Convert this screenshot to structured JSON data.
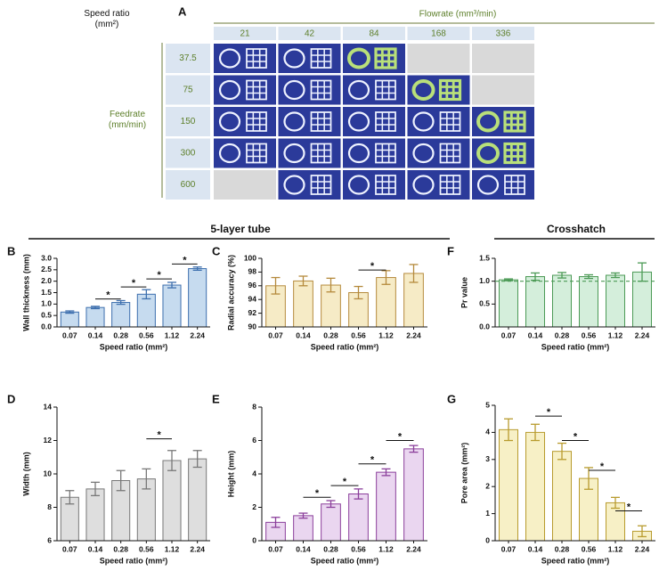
{
  "panel_a": {
    "label": "A",
    "row_title": "Speed ratio\n(mm²)",
    "column_title": "Flowrate (mm³/min)",
    "columns": [
      "21",
      "42",
      "84",
      "168",
      "336"
    ],
    "side_title": "Feedrate\n(mm/min)",
    "rows": [
      "37.5",
      "75",
      "150",
      "300",
      "600"
    ]
  },
  "sections": [
    {
      "title": "5-layer tube"
    },
    {
      "title": "Crosshatch"
    }
  ],
  "chart_data": [
    {
      "type": "bar",
      "label": "B",
      "ylabel": "Wall thickness (mm)",
      "xlabel": "Speed ratio (mm²)",
      "categories": [
        "0.07",
        "0.14",
        "0.28",
        "0.56",
        "1.12",
        "2.24"
      ],
      "values": [
        0.65,
        0.85,
        1.07,
        1.43,
        1.83,
        2.55
      ],
      "errors": [
        0.05,
        0.05,
        0.08,
        0.2,
        0.12,
        0.07
      ],
      "ylim": [
        0,
        3
      ],
      "yticks": [
        {
          "value": 0,
          "label": "0.0"
        },
        {
          "value": 0.5,
          "label": "0.5"
        },
        {
          "value": 1,
          "label": "1.0"
        },
        {
          "value": 1.5,
          "label": "1.5"
        },
        {
          "value": 2,
          "label": "2.0"
        },
        {
          "value": 2.5,
          "label": "2.5"
        },
        {
          "value": 3,
          "label": "3.0"
        }
      ],
      "color": "#c6dbef",
      "edgecolor": "#3d6fae",
      "brackets": [
        {
          "between": [
            1,
            2
          ],
          "y": 1.22,
          "label": "*"
        },
        {
          "between": [
            2,
            3
          ],
          "y": 1.75,
          "label": "*"
        },
        {
          "between": [
            3,
            4
          ],
          "y": 2.1,
          "label": "*"
        },
        {
          "between": [
            4,
            5
          ],
          "y": 2.75,
          "label": "*"
        }
      ]
    },
    {
      "type": "bar",
      "label": "C",
      "ylabel": "Radial accuracy (%)",
      "xlabel": "Speed ratio (mm²)",
      "categories": [
        "0.07",
        "0.14",
        "0.28",
        "0.56",
        "1.12",
        "2.24"
      ],
      "values": [
        96.0,
        96.7,
        96.1,
        95.0,
        97.2,
        97.8
      ],
      "errors": [
        1.2,
        0.7,
        1.0,
        0.9,
        1.0,
        1.3
      ],
      "ylim": [
        90,
        100
      ],
      "yticks": [
        90,
        92,
        94,
        96,
        98,
        100
      ],
      "color": "#f6ebc6",
      "edgecolor": "#b58a3c",
      "brackets": [
        {
          "between": [
            3,
            4
          ],
          "y": 98.3,
          "label": "*"
        }
      ]
    },
    {
      "type": "bar",
      "label": "F",
      "ylabel": "Pr value",
      "xlabel": "Speed ratio (mm²)",
      "categories": [
        "0.07",
        "0.14",
        "0.28",
        "0.56",
        "1.12",
        "2.24"
      ],
      "values": [
        1.03,
        1.1,
        1.13,
        1.1,
        1.13,
        1.2
      ],
      "errors": [
        0.02,
        0.08,
        0.06,
        0.04,
        0.05,
        0.2
      ],
      "ylim": [
        0,
        1.5
      ],
      "yticks": [
        {
          "value": 0,
          "label": "0.0"
        },
        {
          "value": 0.5,
          "label": "0.5"
        },
        {
          "value": 1,
          "label": "1.0"
        },
        {
          "value": 1.5,
          "label": "1.5"
        }
      ],
      "color": "#d4eedb",
      "edgecolor": "#4c9a56",
      "reference_line": 1
    },
    {
      "type": "bar",
      "label": "D",
      "ylabel": "Width (mm)",
      "xlabel": "Speed ratio (mm²)",
      "categories": [
        "0.07",
        "0.14",
        "0.28",
        "0.56",
        "1.12",
        "2.24"
      ],
      "values": [
        8.6,
        9.1,
        9.6,
        9.7,
        10.8,
        10.9
      ],
      "errors": [
        0.4,
        0.4,
        0.6,
        0.6,
        0.6,
        0.5
      ],
      "ylim": [
        6,
        14
      ],
      "yticks": [
        6,
        8,
        10,
        12,
        14
      ],
      "color": "#dedede",
      "edgecolor": "#787878",
      "brackets": [
        {
          "between": [
            3,
            4
          ],
          "y": 12.1,
          "label": "*"
        }
      ]
    },
    {
      "type": "bar",
      "label": "E",
      "ylabel": "Height (mm)",
      "xlabel": "Speed ratio (mm²)",
      "categories": [
        "0.07",
        "0.14",
        "0.28",
        "0.56",
        "1.12",
        "2.24"
      ],
      "values": [
        1.1,
        1.5,
        2.2,
        2.8,
        4.1,
        5.5
      ],
      "errors": [
        0.3,
        0.15,
        0.2,
        0.3,
        0.2,
        0.2
      ],
      "ylim": [
        0,
        8
      ],
      "yticks": [
        0,
        2,
        4,
        6,
        8
      ],
      "color": "#ead6f0",
      "edgecolor": "#8b3f9b",
      "brackets": [
        {
          "between": [
            1,
            2
          ],
          "y": 2.6,
          "label": "*"
        },
        {
          "between": [
            2,
            3
          ],
          "y": 3.3,
          "label": "*"
        },
        {
          "between": [
            3,
            4
          ],
          "y": 4.6,
          "label": "*"
        },
        {
          "between": [
            4,
            5
          ],
          "y": 6.0,
          "label": "*"
        }
      ]
    },
    {
      "type": "bar",
      "label": "G",
      "ylabel": "Pore area (mm²)",
      "xlabel": "Speed ratio (mm²)",
      "categories": [
        "0.07",
        "0.14",
        "0.28",
        "0.56",
        "1.12",
        "2.24"
      ],
      "values": [
        4.1,
        4.0,
        3.3,
        2.3,
        1.4,
        0.35
      ],
      "errors": [
        0.4,
        0.3,
        0.3,
        0.4,
        0.2,
        0.2
      ],
      "ylim": [
        0,
        5
      ],
      "yticks": [
        0,
        1,
        2,
        3,
        4,
        5
      ],
      "color": "#f7f0c6",
      "edgecolor": "#b89b2e",
      "brackets": [
        {
          "between": [
            1,
            2
          ],
          "y": 4.6,
          "label": "*"
        },
        {
          "between": [
            2,
            3
          ],
          "y": 3.7,
          "label": "*"
        },
        {
          "between": [
            3,
            4
          ],
          "y": 2.6,
          "label": "*"
        },
        {
          "between": [
            4,
            5
          ],
          "y": 1.1,
          "label": "*"
        }
      ]
    }
  ]
}
